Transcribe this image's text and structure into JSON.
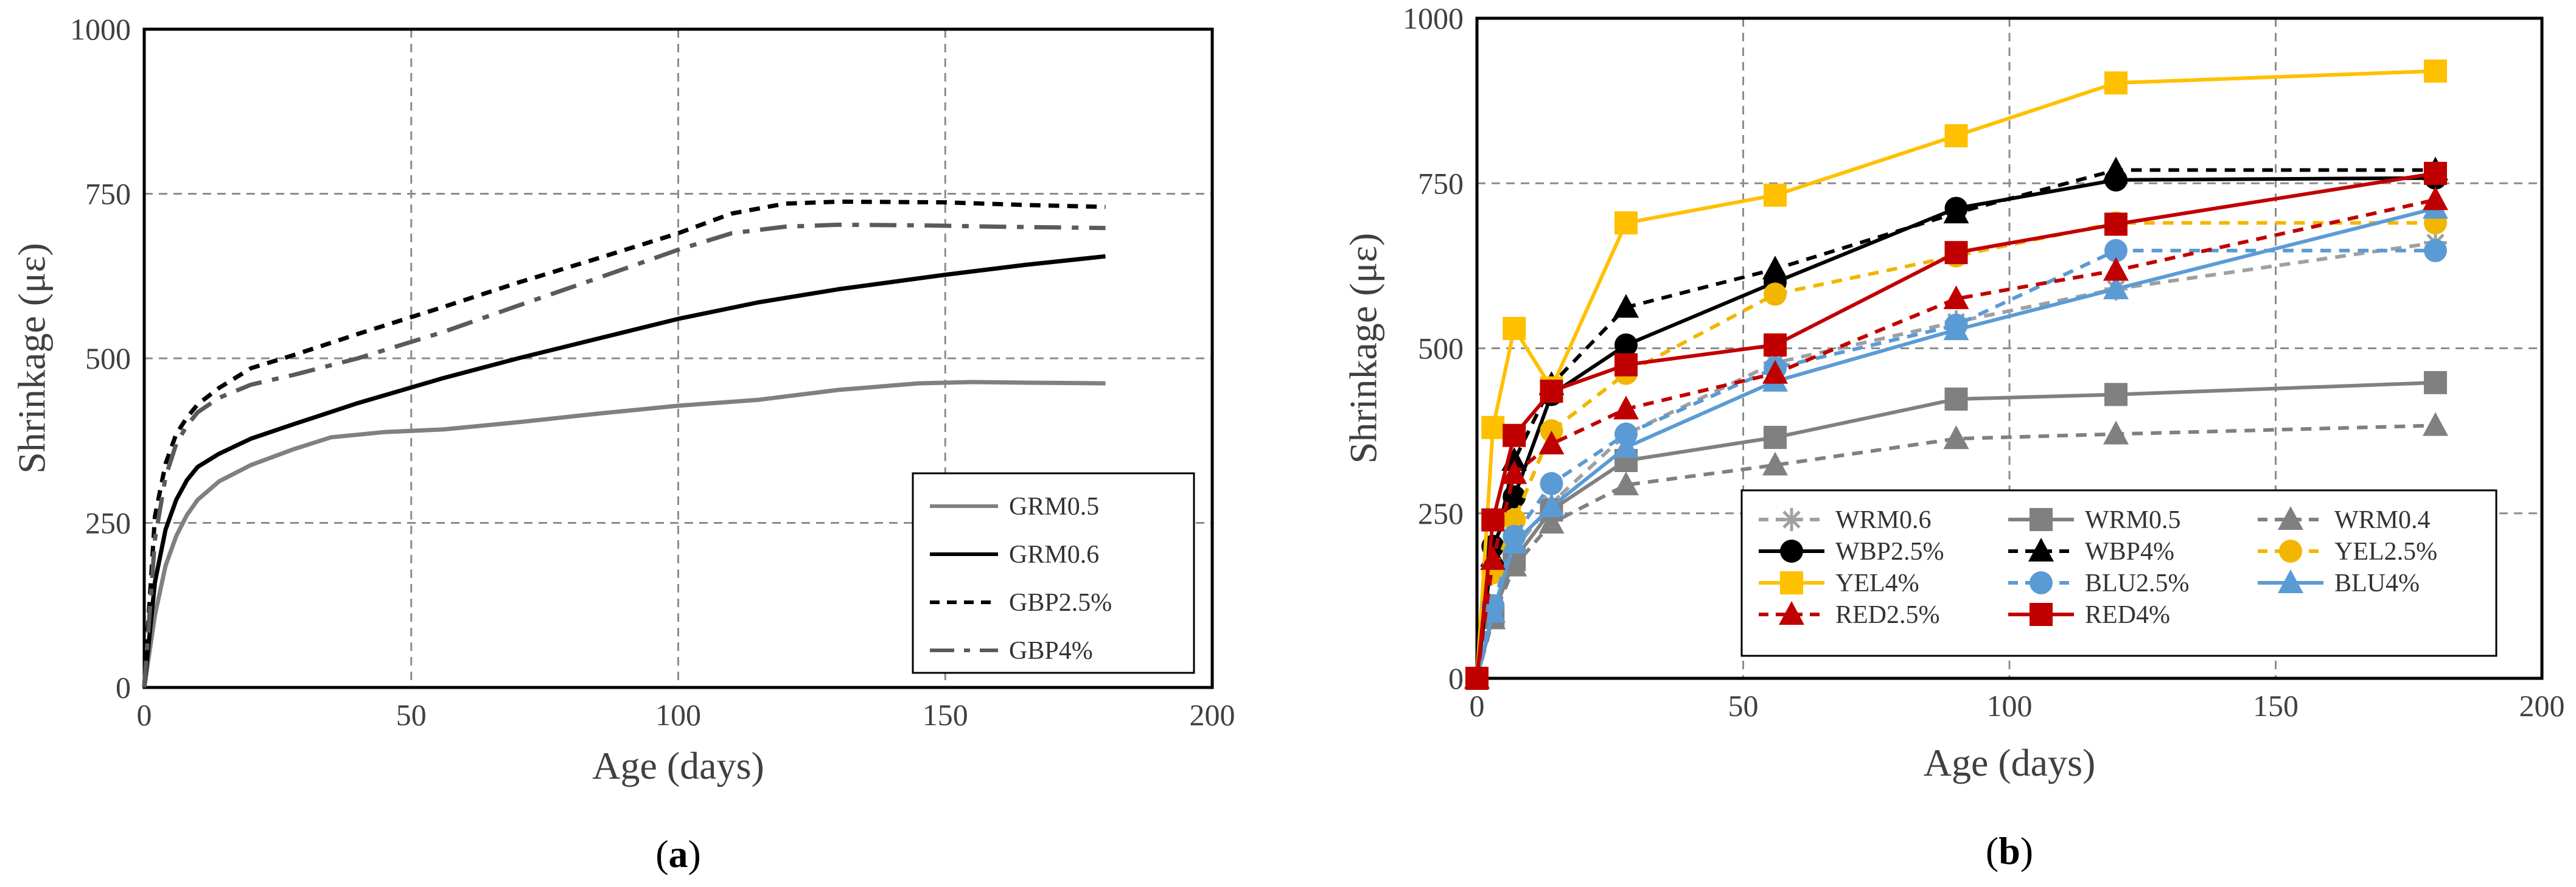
{
  "chart_data": [
    {
      "type": "line",
      "panel_label": "a",
      "xlabel": "Age (days)",
      "ylabel": "Shrinkage (με)",
      "xlim": [
        0,
        200
      ],
      "ylim": [
        0,
        1000
      ],
      "xticks": [
        0,
        50,
        100,
        150,
        200
      ],
      "yticks": [
        0,
        250,
        500,
        750,
        1000
      ],
      "grid": "dashed",
      "legend_position": "bottom-right",
      "series": [
        {
          "name": "GRM0.5",
          "color": "#808080",
          "dash": "solid",
          "marker": "none",
          "x": [
            0,
            2,
            4,
            6,
            8,
            10,
            14,
            20,
            28,
            35,
            45,
            56,
            70,
            85,
            100,
            115,
            130,
            145,
            155,
            165,
            180
          ],
          "y": [
            0,
            110,
            185,
            230,
            262,
            285,
            313,
            338,
            362,
            380,
            388,
            392,
            403,
            416,
            428,
            437,
            452,
            462,
            464,
            463,
            462
          ]
        },
        {
          "name": "GRM0.6",
          "color": "#000000",
          "dash": "solid",
          "marker": "none",
          "x": [
            0,
            2,
            4,
            6,
            8,
            10,
            14,
            20,
            28,
            40,
            56,
            70,
            85,
            100,
            115,
            130,
            150,
            165,
            180
          ],
          "y": [
            0,
            160,
            240,
            285,
            315,
            335,
            355,
            378,
            400,
            432,
            470,
            500,
            530,
            560,
            585,
            605,
            627,
            642,
            655
          ]
        },
        {
          "name": "GBP2.5%",
          "color": "#000000",
          "dash": "8,6",
          "marker": "none",
          "x": [
            0,
            2,
            4,
            6,
            8,
            10,
            14,
            20,
            28,
            40,
            56,
            70,
            85,
            100,
            110,
            120,
            130,
            150,
            165,
            180
          ],
          "y": [
            0,
            260,
            340,
            385,
            410,
            430,
            455,
            485,
            505,
            537,
            578,
            615,
            652,
            690,
            720,
            735,
            738,
            737,
            733,
            730
          ]
        },
        {
          "name": "GBP4%",
          "color": "#5a5a5a",
          "dash": "20,8,5,8",
          "marker": "none",
          "x": [
            0,
            2,
            4,
            6,
            8,
            10,
            14,
            20,
            28,
            40,
            56,
            70,
            85,
            100,
            110,
            120,
            130,
            145,
            160,
            180
          ],
          "y": [
            0,
            225,
            320,
            370,
            398,
            418,
            440,
            460,
            475,
            500,
            540,
            580,
            622,
            665,
            690,
            700,
            703,
            702,
            700,
            698
          ]
        }
      ]
    },
    {
      "type": "line",
      "panel_label": "b",
      "xlabel": "Age (days)",
      "ylabel": "Shrinkage (με)",
      "xlim": [
        0,
        200
      ],
      "ylim": [
        0,
        1000
      ],
      "xticks": [
        0,
        50,
        100,
        150,
        200
      ],
      "yticks": [
        0,
        250,
        500,
        750,
        1000
      ],
      "grid": "dashed",
      "legend_position": "bottom-right",
      "series": [
        {
          "name": "WRM0.6",
          "color": "#a0a0a0",
          "dash": "8,6",
          "marker": "star",
          "x": [
            0,
            3,
            7,
            14,
            28,
            56,
            90,
            120,
            180
          ],
          "y": [
            0,
            100,
            195,
            265,
            370,
            478,
            540,
            590,
            660
          ]
        },
        {
          "name": "WRM0.5",
          "color": "#808080",
          "dash": "solid",
          "marker": "square",
          "x": [
            0,
            3,
            7,
            14,
            28,
            56,
            90,
            120,
            180
          ],
          "y": [
            0,
            95,
            180,
            255,
            330,
            365,
            423,
            430,
            448
          ]
        },
        {
          "name": "WRM0.4",
          "color": "#808080",
          "dash": "8,6",
          "marker": "triangle",
          "x": [
            0,
            3,
            7,
            14,
            28,
            56,
            90,
            120,
            180
          ],
          "y": [
            0,
            90,
            170,
            235,
            293,
            323,
            363,
            370,
            383
          ]
        },
        {
          "name": "WBP2.5%",
          "color": "#000000",
          "dash": "solid",
          "marker": "circle",
          "x": [
            0,
            3,
            7,
            14,
            28,
            56,
            90,
            120,
            180
          ],
          "y": [
            0,
            200,
            275,
            430,
            505,
            600,
            712,
            755,
            758
          ]
        },
        {
          "name": "WBP4%",
          "color": "#000000",
          "dash": "8,6",
          "marker": "triangle",
          "x": [
            0,
            3,
            7,
            14,
            28,
            56,
            90,
            120,
            180
          ],
          "y": [
            0,
            185,
            330,
            445,
            562,
            620,
            705,
            770,
            770
          ]
        },
        {
          "name": "YEL2.5%",
          "color": "#f2b600",
          "dash": "8,6",
          "marker": "circle",
          "x": [
            0,
            3,
            7,
            14,
            28,
            56,
            90,
            120,
            180
          ],
          "y": [
            0,
            160,
            240,
            375,
            462,
            582,
            640,
            690,
            690
          ]
        },
        {
          "name": "YEL4%",
          "color": "#ffc000",
          "dash": "solid",
          "marker": "square",
          "x": [
            0,
            3,
            7,
            14,
            28,
            56,
            90,
            120,
            180
          ],
          "y": [
            0,
            380,
            530,
            440,
            690,
            732,
            822,
            902,
            920
          ]
        },
        {
          "name": "BLU2.5%",
          "color": "#5b9bd5",
          "dash": "8,6",
          "marker": "circle",
          "x": [
            0,
            3,
            7,
            14,
            28,
            56,
            90,
            120,
            180
          ],
          "y": [
            0,
            110,
            215,
            295,
            370,
            470,
            535,
            648,
            648
          ]
        },
        {
          "name": "BLU4%",
          "color": "#5b9bd5",
          "dash": "solid",
          "marker": "triangle",
          "x": [
            0,
            3,
            7,
            14,
            28,
            56,
            90,
            120,
            180
          ],
          "y": [
            0,
            100,
            205,
            260,
            350,
            450,
            528,
            590,
            712
          ]
        },
        {
          "name": "RED2.5%",
          "color": "#c00000",
          "dash": "8,6",
          "marker": "triangle",
          "x": [
            0,
            3,
            7,
            14,
            28,
            56,
            90,
            120,
            180
          ],
          "y": [
            0,
            180,
            310,
            355,
            408,
            462,
            575,
            618,
            725
          ]
        },
        {
          "name": "RED4%",
          "color": "#c00000",
          "dash": "solid",
          "marker": "square",
          "x": [
            0,
            3,
            7,
            14,
            28,
            56,
            90,
            120,
            180
          ],
          "y": [
            0,
            240,
            368,
            435,
            475,
            505,
            645,
            688,
            765
          ]
        }
      ]
    }
  ]
}
